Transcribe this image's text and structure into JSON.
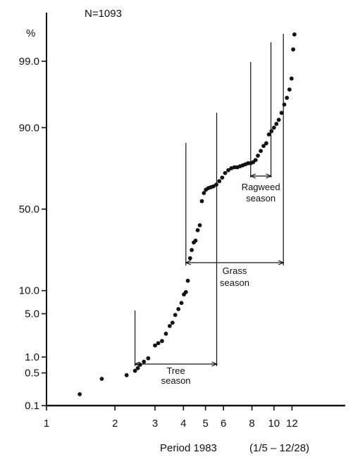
{
  "chart_data": {
    "type": "scatter",
    "annotation_top": "N=1093",
    "y_unit": "%",
    "x_caption": "Period 1983",
    "x_caption_range": "(1/5 – 12/28)",
    "x_scale": "log",
    "y_scale": "probability",
    "xlim": [
      1,
      20
    ],
    "ylim": [
      0.1,
      99.9
    ],
    "x_ticks": [
      1,
      2,
      3,
      4,
      5,
      6,
      8,
      10,
      12
    ],
    "x_tick_labels": [
      "1",
      "2",
      "3",
      "4",
      "5",
      "6",
      "8",
      "10",
      "12"
    ],
    "y_ticks": [
      0.1,
      0.5,
      1.0,
      5.0,
      10.0,
      50.0,
      90.0,
      99.0
    ],
    "y_tick_labels": [
      "0.1",
      "0.5",
      "1.0",
      "5.0",
      "10.0",
      "50.0",
      "90.0",
      "99.0"
    ],
    "grid": false,
    "color": "#111111",
    "series": [
      {
        "x": [
          1.4,
          1.75,
          2.25,
          2.45,
          2.52,
          2.58,
          2.68,
          2.8,
          3.0,
          3.1,
          3.22,
          3.35,
          3.48,
          3.58,
          3.68,
          3.8,
          3.92,
          4.02,
          4.1,
          4.18,
          4.28,
          4.35,
          4.44,
          4.52,
          4.62,
          4.72,
          4.82,
          4.92,
          5.02,
          5.15,
          5.28,
          5.42,
          5.58,
          5.75,
          5.92,
          6.1,
          6.3,
          6.5,
          6.7,
          6.9,
          7.1,
          7.3,
          7.5,
          7.7,
          7.9,
          8.1,
          8.3,
          8.5,
          8.75,
          9.0,
          9.25,
          9.5,
          9.75,
          10.0,
          10.25,
          10.5,
          10.8,
          11.1,
          11.4,
          11.7,
          11.95,
          12.15,
          12.3
        ],
        "y": [
          0.18,
          0.38,
          0.45,
          0.55,
          0.62,
          0.72,
          0.82,
          0.95,
          1.6,
          1.75,
          1.9,
          2.5,
          3.3,
          3.7,
          4.8,
          5.8,
          7.0,
          9.0,
          9.6,
          13.0,
          22.0,
          26.0,
          30.0,
          31.0,
          37.0,
          40.0,
          55.0,
          60.0,
          62.0,
          63.0,
          63.5,
          64.0,
          65.0,
          67.0,
          69.0,
          71.5,
          73.0,
          74.0,
          74.5,
          74.5,
          75.0,
          75.5,
          76.0,
          76.5,
          76.5,
          77.0,
          78.0,
          80.0,
          82.0,
          84.0,
          85.0,
          88.0,
          89.0,
          90.0,
          91.0,
          92.0,
          93.5,
          95.0,
          96.0,
          97.0,
          98.0,
          99.4,
          99.7
        ]
      }
    ],
    "seasons": [
      {
        "label_lines": [
          "Tree",
          "season"
        ],
        "x_start": 2.45,
        "x_end": 5.6
      },
      {
        "label_lines": [
          "Grass",
          "season"
        ],
        "x_start": 4.1,
        "x_end": 11.0
      },
      {
        "label_lines": [
          "Ragweed",
          "season"
        ],
        "x_start": 7.9,
        "x_end": 9.7
      }
    ]
  }
}
